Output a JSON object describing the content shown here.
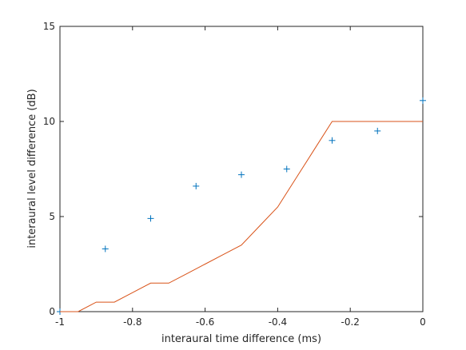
{
  "chart_data": {
    "type": "line",
    "title": "",
    "xlabel": "interaural time difference (ms)",
    "ylabel": "interaural level difference (dB)",
    "xlim": [
      -1,
      0
    ],
    "ylim": [
      0,
      15
    ],
    "xticks": [
      -1,
      -0.8,
      -0.6,
      -0.4,
      -0.2,
      0
    ],
    "xtick_labels": [
      "-1",
      "-0.8",
      "-0.6",
      "-0.4",
      "-0.2",
      "0"
    ],
    "yticks": [
      0,
      5,
      10,
      15
    ],
    "ytick_labels": [
      "0",
      "5",
      "10",
      "15"
    ],
    "grid": false,
    "series": [
      {
        "type": "scatter",
        "marker": "+",
        "color": "#0072bd",
        "x": [
          -1,
          -0.875,
          -0.75,
          -0.625,
          -0.5,
          -0.375,
          -0.25,
          -0.125,
          0
        ],
        "y": [
          0,
          3.3,
          4.9,
          6.6,
          7.2,
          7.5,
          9.0,
          9.5,
          11.1
        ]
      },
      {
        "type": "line",
        "color": "#d95319",
        "x": [
          -1,
          -0.95,
          -0.9,
          -0.85,
          -0.8,
          -0.75,
          -0.7,
          -0.65,
          -0.6,
          -0.55,
          -0.5,
          -0.45,
          -0.4,
          -0.35,
          -0.3,
          -0.25,
          -0.2,
          -0.15,
          -0.1,
          -0.05,
          0
        ],
        "y": [
          0,
          0,
          0.5,
          0.5,
          1.0,
          1.5,
          1.5,
          2.0,
          2.5,
          3.0,
          3.5,
          4.5,
          5.5,
          7.0,
          8.5,
          10.0,
          10.0,
          10.0,
          10.0,
          10.0,
          10.0
        ]
      }
    ]
  }
}
